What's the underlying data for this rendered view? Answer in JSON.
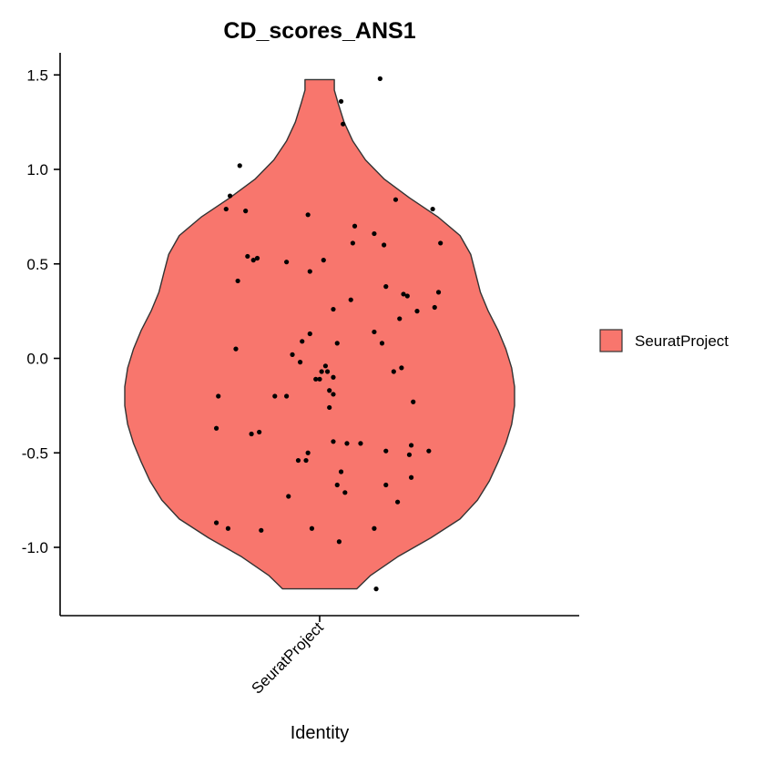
{
  "chart_data": {
    "type": "violin",
    "title": "CD_scores_ANS1",
    "xlabel": "Identity",
    "ylabel": "",
    "categories": [
      "SeuratProject"
    ],
    "ylim": [
      -1.35,
      1.6
    ],
    "yticks": [
      -1.0,
      -0.5,
      0.0,
      0.5,
      1.0,
      1.5
    ],
    "ytick_labels": [
      "-1.0",
      "-0.5",
      "0.0",
      "0.5",
      "1.0",
      "1.5"
    ],
    "fill_color": "#F8766D",
    "outline_color": "#333333",
    "point_color": "#000000",
    "legend": {
      "position": "right",
      "entries": [
        "SeuratProject"
      ]
    },
    "violin_profile": [
      [
        -1.22,
        0.19
      ],
      [
        -1.15,
        0.26
      ],
      [
        -1.05,
        0.4
      ],
      [
        -0.95,
        0.57
      ],
      [
        -0.85,
        0.72
      ],
      [
        -0.75,
        0.81
      ],
      [
        -0.65,
        0.87
      ],
      [
        -0.55,
        0.915
      ],
      [
        -0.45,
        0.955
      ],
      [
        -0.35,
        0.985
      ],
      [
        -0.25,
        1.0
      ],
      [
        -0.15,
        1.0
      ],
      [
        -0.05,
        0.985
      ],
      [
        0.05,
        0.955
      ],
      [
        0.15,
        0.915
      ],
      [
        0.25,
        0.865
      ],
      [
        0.35,
        0.825
      ],
      [
        0.45,
        0.8
      ],
      [
        0.55,
        0.775
      ],
      [
        0.65,
        0.72
      ],
      [
        0.75,
        0.605
      ],
      [
        0.85,
        0.46
      ],
      [
        0.95,
        0.33
      ],
      [
        1.05,
        0.235
      ],
      [
        1.15,
        0.17
      ],
      [
        1.25,
        0.125
      ],
      [
        1.35,
        0.095
      ],
      [
        1.42,
        0.075
      ],
      [
        1.475,
        0.075
      ]
    ],
    "points": [
      [
        -0.41,
        1.02
      ],
      [
        -0.46,
        0.86
      ],
      [
        -0.48,
        0.79
      ],
      [
        -0.38,
        0.78
      ],
      [
        -0.53,
        -0.87
      ],
      [
        -0.47,
        -0.9
      ],
      [
        -0.43,
        0.05
      ],
      [
        -0.52,
        -0.2
      ],
      [
        -0.53,
        -0.37
      ],
      [
        -0.37,
        0.54
      ],
      [
        -0.34,
        0.52
      ],
      [
        -0.32,
        0.53
      ],
      [
        -0.42,
        0.41
      ],
      [
        -0.31,
        -0.39
      ],
      [
        -0.35,
        -0.4
      ],
      [
        -0.3,
        -0.91
      ],
      [
        -0.23,
        -0.2
      ],
      [
        -0.17,
        -0.2
      ],
      [
        -0.16,
        -0.73
      ],
      [
        -0.17,
        0.51
      ],
      [
        -0.14,
        0.02
      ],
      [
        -0.1,
        -0.02
      ],
      [
        -0.09,
        0.09
      ],
      [
        -0.06,
        0.76
      ],
      [
        -0.05,
        0.46
      ],
      [
        -0.06,
        -0.5
      ],
      [
        -0.07,
        -0.54
      ],
      [
        -0.05,
        0.13
      ],
      [
        -0.11,
        -0.54
      ],
      [
        -0.04,
        -0.9
      ],
      [
        -0.02,
        -0.11
      ],
      [
        0.0,
        -0.11
      ],
      [
        0.01,
        -0.07
      ],
      [
        0.03,
        -0.04
      ],
      [
        0.04,
        -0.07
      ],
      [
        0.05,
        -0.17
      ],
      [
        0.07,
        -0.1
      ],
      [
        0.05,
        -0.26
      ],
      [
        0.07,
        -0.19
      ],
      [
        0.02,
        0.52
      ],
      [
        0.07,
        0.26
      ],
      [
        0.09,
        0.08
      ],
      [
        0.07,
        -0.44
      ],
      [
        0.09,
        -0.67
      ],
      [
        0.11,
        -0.6
      ],
      [
        0.13,
        -0.71
      ],
      [
        0.1,
        -0.97
      ],
      [
        0.14,
        -0.45
      ],
      [
        0.11,
        1.36
      ],
      [
        0.12,
        1.24
      ],
      [
        0.18,
        0.7
      ],
      [
        0.17,
        0.61
      ],
      [
        0.16,
        0.31
      ],
      [
        0.21,
        -0.45
      ],
      [
        0.28,
        0.66
      ],
      [
        0.33,
        0.6
      ],
      [
        0.28,
        0.14
      ],
      [
        0.32,
        0.08
      ],
      [
        0.39,
        0.84
      ],
      [
        0.34,
        0.38
      ],
      [
        0.34,
        -0.49
      ],
      [
        0.34,
        -0.67
      ],
      [
        0.28,
        -0.9
      ],
      [
        0.29,
        -1.22
      ],
      [
        0.31,
        1.48
      ],
      [
        0.38,
        -0.07
      ],
      [
        0.42,
        -0.05
      ],
      [
        0.41,
        0.21
      ],
      [
        0.43,
        0.34
      ],
      [
        0.45,
        0.33
      ],
      [
        0.5,
        0.25
      ],
      [
        0.48,
        -0.23
      ],
      [
        0.46,
        -0.51
      ],
      [
        0.47,
        -0.46
      ],
      [
        0.47,
        -0.63
      ],
      [
        0.4,
        -0.76
      ],
      [
        0.58,
        0.79
      ],
      [
        0.59,
        0.27
      ],
      [
        0.61,
        0.35
      ],
      [
        0.62,
        0.61
      ],
      [
        0.56,
        -0.49
      ]
    ]
  }
}
